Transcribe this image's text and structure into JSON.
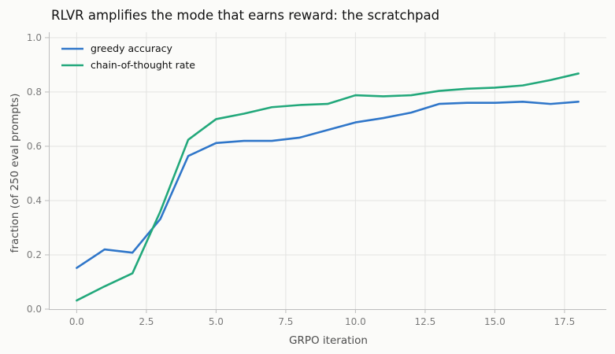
{
  "chart_data": {
    "type": "line",
    "title": "RLVR amplifies the mode that earns reward: the scratchpad",
    "xlabel": "GRPO iteration",
    "ylabel": "fraction (of 250 eval prompts)",
    "xlim": [
      -1,
      19
    ],
    "ylim": [
      0,
      1.02
    ],
    "x_ticks": [
      0.0,
      2.5,
      5.0,
      7.5,
      10.0,
      12.5,
      15.0,
      17.5
    ],
    "x_tick_labels": [
      "0.0",
      "2.5",
      "5.0",
      "7.5",
      "10.0",
      "12.5",
      "15.0",
      "17.5"
    ],
    "y_ticks": [
      0.0,
      0.2,
      0.4,
      0.6,
      0.8,
      1.0
    ],
    "y_tick_labels": [
      "0.0",
      "0.2",
      "0.4",
      "0.6",
      "0.8",
      "1.0"
    ],
    "grid": true,
    "legend_position": "top-left",
    "x": [
      0,
      1,
      2,
      3,
      4,
      5,
      6,
      7,
      8,
      9,
      10,
      11,
      12,
      13,
      14,
      15,
      16,
      17,
      18
    ],
    "series": [
      {
        "name": "greedy accuracy",
        "color": "#2f76c9",
        "values": [
          0.152,
          0.22,
          0.208,
          0.332,
          0.564,
          0.612,
          0.62,
          0.62,
          0.632,
          0.66,
          0.688,
          0.704,
          0.724,
          0.756,
          0.76,
          0.76,
          0.764,
          0.756,
          0.764
        ]
      },
      {
        "name": "chain-of-thought rate",
        "color": "#22a87b",
        "values": [
          0.032,
          0.084,
          0.132,
          0.36,
          0.624,
          0.7,
          0.72,
          0.744,
          0.752,
          0.756,
          0.788,
          0.784,
          0.788,
          0.804,
          0.812,
          0.816,
          0.824,
          0.844,
          0.868
        ]
      }
    ]
  }
}
